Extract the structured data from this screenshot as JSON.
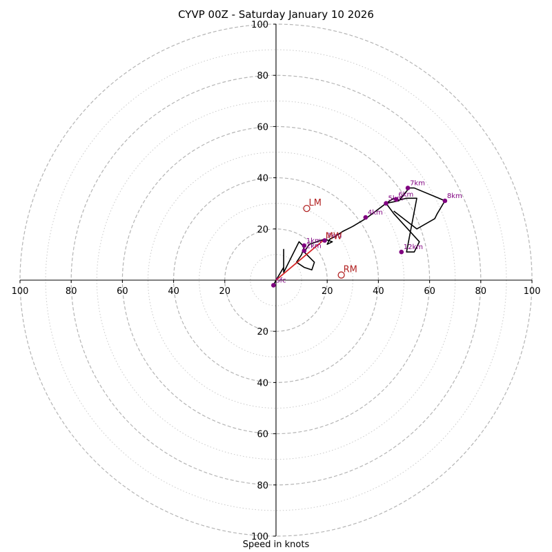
{
  "chart_data": {
    "type": "scatter",
    "subtype": "hodograph",
    "title": "CYVP 00Z - Saturday January 10 2026",
    "xlabel": "Speed in knots",
    "ylabel": "",
    "xlim": [
      -100,
      100
    ],
    "ylim": [
      -100,
      100
    ],
    "rings_major": [
      20,
      40,
      60,
      80,
      100
    ],
    "rings_minor": [
      10,
      30,
      50,
      70,
      90
    ],
    "x_tick_labels": [
      "100",
      "80",
      "60",
      "40",
      "20",
      "20",
      "40",
      "60",
      "80",
      "100"
    ],
    "y_tick_labels": [
      "100",
      "80",
      "60",
      "40",
      "20",
      "20",
      "40",
      "60",
      "80",
      "100"
    ],
    "grid": true,
    "hodograph_line": {
      "color": "#000000",
      "points": [
        [
          -1,
          -2
        ],
        [
          0,
          0
        ],
        [
          3,
          5
        ],
        [
          3,
          12
        ],
        [
          3,
          3
        ],
        [
          9,
          15
        ],
        [
          11,
          13
        ],
        [
          10,
          10
        ],
        [
          8,
          7
        ],
        [
          11,
          5
        ],
        [
          14,
          4
        ],
        [
          15,
          7
        ],
        [
          11,
          11
        ],
        [
          13,
          14
        ],
        [
          19,
          16
        ],
        [
          22,
          15
        ],
        [
          20,
          14
        ],
        [
          21,
          16
        ],
        [
          23,
          17
        ],
        [
          26,
          19
        ],
        [
          30,
          21
        ],
        [
          35,
          24
        ],
        [
          39,
          27
        ],
        [
          43,
          30
        ],
        [
          46,
          32
        ],
        [
          47,
          31
        ],
        [
          51,
          32
        ],
        [
          55,
          32
        ],
        [
          51,
          11
        ],
        [
          54,
          11
        ],
        [
          56,
          15
        ],
        [
          46,
          26
        ],
        [
          43,
          30
        ],
        [
          48,
          31
        ],
        [
          52,
          36
        ],
        [
          54,
          36
        ],
        [
          66,
          31
        ],
        [
          63,
          26
        ],
        [
          62,
          24
        ],
        [
          55,
          20
        ],
        [
          46,
          27
        ]
      ]
    },
    "height_markers": {
      "color": "#800080",
      "points": [
        {
          "label": "Sfc",
          "u": -1,
          "v": -2
        },
        {
          "label": "1km",
          "u": 11,
          "v": 13.5
        },
        {
          "label": "2km",
          "u": 11,
          "v": 11.5
        },
        {
          "label": "3km",
          "u": 19,
          "v": 15.5
        },
        {
          "label": "4km",
          "u": 35,
          "v": 24.5
        },
        {
          "label": "5km",
          "u": 43,
          "v": 30
        },
        {
          "label": "6km",
          "u": 47,
          "v": 31.5
        },
        {
          "label": "7km",
          "u": 51.5,
          "v": 36
        },
        {
          "label": "8km",
          "u": 66,
          "v": 31
        },
        {
          "label": "12km",
          "u": 49,
          "v": 11
        }
      ]
    },
    "shear_vector": {
      "color": "#d62728",
      "from": [
        0,
        0
      ],
      "to": [
        19,
        16
      ]
    },
    "storm_motion": [
      {
        "label": "LM",
        "u": 12,
        "v": 28,
        "color": "#b22222"
      },
      {
        "label": "RM",
        "u": 25.5,
        "v": 2,
        "color": "#b22222"
      },
      {
        "label": "MW",
        "u": 18.5,
        "v": 15,
        "color": "#b22222"
      }
    ]
  }
}
